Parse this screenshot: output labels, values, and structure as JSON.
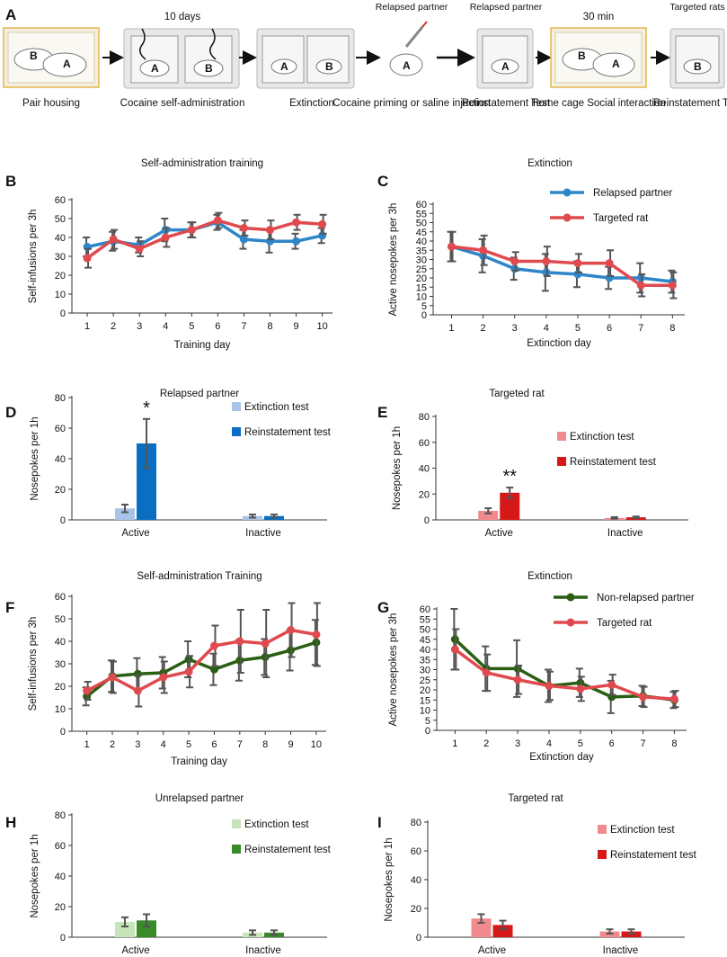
{
  "panel_a": {
    "letter": "A",
    "top_labels": [
      "10 days",
      "Relapsed partner",
      "Relapsed partner",
      "30 min",
      "Targeted rats"
    ],
    "captions": [
      "Pair housing",
      "Cocaine self-administration",
      "Extinction",
      "Cocaine priming or saline injection",
      "Reinstatement Test",
      "Home cage Social interaction",
      "Reinstatement Test"
    ],
    "rat_letters": [
      "A",
      "B"
    ]
  },
  "colors": {
    "blue": "#2e86c8",
    "red": "#e04a4f",
    "light_blue": "#a9c4e6",
    "dark_blue": "#0a6fc2",
    "light_red": "#f08a8e",
    "dark_red": "#d61818",
    "light_green": "#c6e5b8",
    "dark_green": "#3a8a2a",
    "line_green": "#2a5e12",
    "cage_outline": "#e3b84a"
  },
  "chart_data": [
    {
      "id": "B",
      "type": "line",
      "title": "Self-administration training",
      "xlabel": "Training day",
      "ylabel": "Self-infusions per 3h",
      "x": [
        1,
        2,
        3,
        4,
        5,
        6,
        7,
        8,
        9,
        10
      ],
      "ylim": [
        0,
        60
      ],
      "yticks": [
        0,
        10,
        20,
        30,
        40,
        50,
        60
      ],
      "legend": "none",
      "series": [
        {
          "name": "Relapsed partner",
          "color": "#2e86c8",
          "values": [
            35,
            38,
            36,
            44,
            44,
            48,
            39,
            38,
            38,
            41
          ],
          "errors": [
            5,
            5,
            4,
            6,
            4,
            4,
            5,
            6,
            4,
            4
          ]
        },
        {
          "name": "Targeted rat",
          "color": "#e04a4f",
          "values": [
            29,
            39,
            34,
            40,
            44,
            49,
            45,
            44,
            48,
            47
          ],
          "errors": [
            5,
            5,
            4,
            5,
            4,
            4,
            4,
            5,
            4,
            5
          ]
        }
      ]
    },
    {
      "id": "C",
      "type": "line",
      "title": "Extinction",
      "xlabel": "Extinction day",
      "ylabel": "Active nosepokes per 3h",
      "x": [
        1,
        2,
        3,
        4,
        5,
        6,
        7,
        8
      ],
      "ylim": [
        0,
        60
      ],
      "yticks": [
        0,
        5,
        10,
        15,
        20,
        25,
        30,
        35,
        40,
        45,
        50,
        55,
        60
      ],
      "legend": "top-right",
      "series": [
        {
          "name": "Relapsed partner",
          "color": "#2e86c8",
          "values": [
            37,
            32,
            25,
            23,
            22,
            20,
            20,
            18
          ],
          "errors": [
            8,
            9,
            6,
            10,
            7,
            6,
            8,
            6
          ]
        },
        {
          "name": "Targeted rat",
          "color": "#e04a4f",
          "values": [
            37,
            35,
            29,
            29,
            28,
            28,
            16,
            16
          ],
          "errors": [
            8,
            8,
            5,
            8,
            5,
            7,
            6,
            7
          ]
        }
      ]
    },
    {
      "id": "D",
      "type": "bar",
      "title": "Relapsed partner",
      "xlabel": "",
      "ylabel": "Nosepokes per 1h",
      "categories": [
        "Active",
        "Inactive"
      ],
      "ylim": [
        0,
        80
      ],
      "yticks": [
        0,
        20,
        40,
        60,
        80
      ],
      "legend": "top-right",
      "annotations": [
        {
          "category": "Active",
          "text": "*"
        }
      ],
      "series": [
        {
          "name": "Extinction test",
          "color": "#a9c4e6",
          "values": [
            7.5,
            2.5
          ],
          "errors": [
            2.5,
            1
          ]
        },
        {
          "name": "Reinstatement test",
          "color": "#0a6fc2",
          "values": [
            50,
            2.5
          ],
          "errors": [
            16,
            1
          ]
        }
      ]
    },
    {
      "id": "E",
      "type": "bar",
      "title": "Targeted rat",
      "xlabel": "",
      "ylabel": "Nosepokes per 1h",
      "categories": [
        "Active",
        "Inactive"
      ],
      "ylim": [
        0,
        80
      ],
      "yticks": [
        0,
        20,
        40,
        60,
        80
      ],
      "legend": "right",
      "annotations": [
        {
          "category": "Active",
          "text": "**"
        }
      ],
      "series": [
        {
          "name": "Extinction test",
          "color": "#f08a8e",
          "values": [
            7,
            1.5
          ],
          "errors": [
            2,
            0.6
          ]
        },
        {
          "name": "Reinstatement test",
          "color": "#d61818",
          "values": [
            21,
            2
          ],
          "errors": [
            4,
            0.6
          ]
        }
      ]
    },
    {
      "id": "F",
      "type": "line",
      "title": "Self-administration Training",
      "xlabel": "Training day",
      "ylabel": "Self-infusions per 3h",
      "x": [
        1,
        2,
        3,
        4,
        5,
        6,
        7,
        8,
        9,
        10
      ],
      "ylim": [
        0,
        60
      ],
      "yticks": [
        0,
        10,
        20,
        30,
        40,
        50,
        60
      ],
      "legend": "none",
      "series": [
        {
          "name": "Non-relapsed partner",
          "color": "#2a5e12",
          "values": [
            15.5,
            24.5,
            25.5,
            26,
            32,
            27.5,
            31.5,
            33,
            36,
            39.5
          ],
          "errors": [
            4,
            7,
            7,
            7,
            8,
            7,
            9,
            8,
            9,
            10
          ]
        },
        {
          "name": "Targeted rat",
          "color": "#e04a4f",
          "values": [
            18,
            24,
            18,
            24,
            26.5,
            38,
            40,
            39,
            45,
            43
          ],
          "errors": [
            4,
            7,
            7,
            7,
            7,
            9,
            14,
            15,
            12,
            14
          ]
        }
      ]
    },
    {
      "id": "G",
      "type": "line",
      "title": "Extinction",
      "xlabel": "Extinction day",
      "ylabel": "Active nosepokes per 3h",
      "x": [
        1,
        2,
        3,
        4,
        5,
        6,
        7,
        8
      ],
      "ylim": [
        0,
        60
      ],
      "yticks": [
        0,
        5,
        10,
        15,
        20,
        25,
        30,
        35,
        40,
        45,
        50,
        55,
        60
      ],
      "legend": "top-right",
      "series": [
        {
          "name": "Non-relapsed partner",
          "color": "#2a5e12",
          "values": [
            45,
            30.5,
            30.5,
            22,
            23.5,
            16.5,
            17,
            15
          ],
          "errors": [
            15,
            11,
            14,
            8,
            7,
            8,
            5,
            4
          ]
        },
        {
          "name": "Targeted rat",
          "color": "#e04a4f",
          "values": [
            40,
            28.5,
            25,
            22,
            20.5,
            22.5,
            16.5,
            15.5
          ],
          "errors": [
            10,
            9,
            7,
            7,
            6,
            5,
            5,
            4
          ]
        }
      ]
    },
    {
      "id": "H",
      "type": "bar",
      "title": "Unrelapsed partner",
      "xlabel": "",
      "ylabel": "Nosepokes per 1h",
      "categories": [
        "Active",
        "Inactive"
      ],
      "ylim": [
        0,
        80
      ],
      "yticks": [
        0,
        20,
        40,
        60,
        80
      ],
      "legend": "top-right",
      "series": [
        {
          "name": "Extinction test",
          "color": "#c6e5b8",
          "values": [
            10,
            3
          ],
          "errors": [
            3,
            1.5
          ]
        },
        {
          "name": "Reinstatement test",
          "color": "#3a8a2a",
          "values": [
            11,
            3
          ],
          "errors": [
            4,
            1.5
          ]
        }
      ]
    },
    {
      "id": "I",
      "type": "bar",
      "title": "Targeted rat",
      "xlabel": "",
      "ylabel": "Nosepokes per 1h",
      "categories": [
        "Active",
        "Inactive"
      ],
      "ylim": [
        0,
        80
      ],
      "yticks": [
        0,
        20,
        40,
        60,
        80
      ],
      "legend": "top-right",
      "series": [
        {
          "name": "Extinction test",
          "color": "#f08a8e",
          "values": [
            13,
            4
          ],
          "errors": [
            3,
            1.5
          ]
        },
        {
          "name": "Reinstatement test",
          "color": "#d61818",
          "values": [
            8.5,
            4
          ],
          "errors": [
            3,
            1.5
          ]
        }
      ]
    }
  ]
}
